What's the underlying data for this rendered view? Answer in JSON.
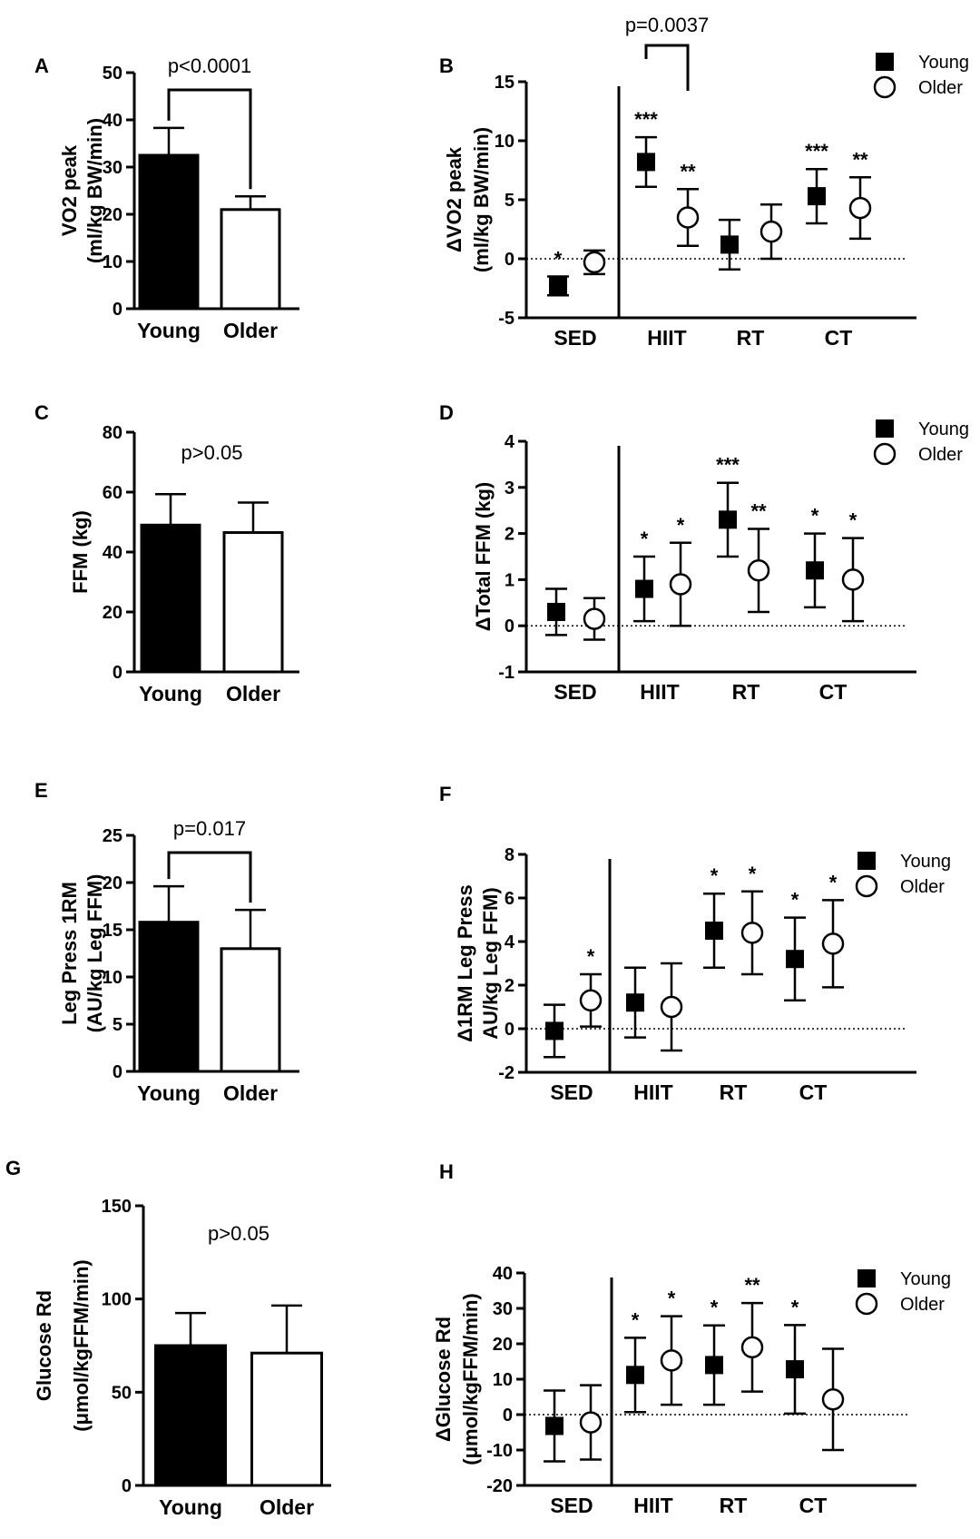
{
  "chart_data": [
    {
      "panel": "A",
      "type": "bar",
      "ylabel": [
        "VO2 peak",
        "(ml/kg BW/min)"
      ],
      "categories": [
        "Young",
        "Older"
      ],
      "values": [
        32.5,
        21.0
      ],
      "errors": [
        5.8,
        2.8
      ],
      "ylim": [
        0,
        50
      ],
      "yticks": [
        0,
        10,
        20,
        30,
        40,
        50
      ],
      "annotation": "p<0.0001",
      "bracket": true
    },
    {
      "panel": "B",
      "type": "scatter",
      "ylabel": [
        "ΔVO2 peak",
        "(ml/kg BW/min)"
      ],
      "categories": [
        "SED",
        "HIIT",
        "RT",
        "CT"
      ],
      "ylim": [
        -5,
        15
      ],
      "yticks": [
        -5,
        0,
        5,
        10,
        15
      ],
      "legend": [
        "Young",
        "Older"
      ],
      "series": [
        {
          "name": "Young",
          "values": [
            -2.3,
            8.2,
            1.2,
            5.3
          ],
          "errors": [
            0.8,
            2.1,
            2.1,
            2.3
          ],
          "stars": [
            "*",
            "***",
            "",
            "***"
          ]
        },
        {
          "name": "Older",
          "values": [
            -0.3,
            3.5,
            2.3,
            4.3
          ],
          "errors": [
            1.0,
            2.4,
            2.3,
            2.6
          ],
          "stars": [
            "",
            "**",
            "",
            "**"
          ]
        }
      ],
      "annotation": "p=0.0037"
    },
    {
      "panel": "C",
      "type": "bar",
      "ylabel": [
        "FFM (kg)"
      ],
      "categories": [
        "Young",
        "Older"
      ],
      "values": [
        49.0,
        46.5
      ],
      "errors": [
        10.3,
        10.0
      ],
      "ylim": [
        0,
        80
      ],
      "yticks": [
        0,
        20,
        40,
        60,
        80
      ],
      "annotation": "p>0.05",
      "bracket": false
    },
    {
      "panel": "D",
      "type": "scatter",
      "ylabel": [
        "ΔTotal FFM (kg)"
      ],
      "categories": [
        "SED",
        "HIIT",
        "RT",
        "CT"
      ],
      "ylim": [
        -1,
        4
      ],
      "yticks": [
        -1,
        0,
        1,
        2,
        3,
        4
      ],
      "legend": [
        "Young",
        "Older"
      ],
      "series": [
        {
          "name": "Young",
          "values": [
            0.3,
            0.8,
            2.3,
            1.2
          ],
          "errors": [
            0.5,
            0.7,
            0.8,
            0.8
          ],
          "stars": [
            "",
            "*",
            "***",
            "*"
          ]
        },
        {
          "name": "Older",
          "values": [
            0.15,
            0.9,
            1.2,
            1.0
          ],
          "errors": [
            0.45,
            0.9,
            0.9,
            0.9
          ],
          "stars": [
            "",
            "*",
            "**",
            "*"
          ]
        }
      ]
    },
    {
      "panel": "E",
      "type": "bar",
      "ylabel": [
        "Leg Press 1RM",
        "(AU/kg Leg FFM)"
      ],
      "categories": [
        "Young",
        "Older"
      ],
      "values": [
        15.8,
        13.0
      ],
      "errors": [
        3.8,
        4.1
      ],
      "ylim": [
        0,
        25
      ],
      "yticks": [
        0,
        5,
        10,
        15,
        20,
        25
      ],
      "annotation": "p=0.017",
      "bracket": true
    },
    {
      "panel": "F",
      "type": "scatter",
      "ylabel": [
        "Δ1RM Leg Press",
        "AU/kg Leg FFM)"
      ],
      "categories": [
        "SED",
        "HIIT",
        "RT",
        "CT"
      ],
      "ylim": [
        -2,
        8
      ],
      "yticks": [
        -2,
        0,
        2,
        4,
        6,
        8
      ],
      "legend": [
        "Young",
        "Older"
      ],
      "series": [
        {
          "name": "Young",
          "values": [
            -0.1,
            1.2,
            4.5,
            3.2
          ],
          "errors": [
            1.2,
            1.6,
            1.7,
            1.9
          ],
          "stars": [
            "",
            "",
            "*",
            "*"
          ]
        },
        {
          "name": "Older",
          "values": [
            1.3,
            1.0,
            4.4,
            3.9
          ],
          "errors": [
            1.2,
            2.0,
            1.9,
            2.0
          ],
          "stars": [
            "*",
            "",
            "*",
            "*"
          ]
        }
      ]
    },
    {
      "panel": "G",
      "type": "bar",
      "ylabel": [
        "Glucose Rd",
        "(μmol/kgFFM/min)"
      ],
      "categories": [
        "Young",
        "Older"
      ],
      "values": [
        75.0,
        71.0
      ],
      "errors": [
        17.5,
        25.5
      ],
      "ylim": [
        0,
        150
      ],
      "yticks": [
        0,
        50,
        100,
        150
      ],
      "annotation": "p>0.05",
      "bracket": false
    },
    {
      "panel": "H",
      "type": "scatter",
      "ylabel": [
        "ΔGlucose Rd",
        "(μmol/kgFFM/min)"
      ],
      "categories": [
        "SED",
        "HIIT",
        "RT",
        "CT"
      ],
      "ylim": [
        -20,
        40
      ],
      "yticks": [
        -20,
        -10,
        0,
        10,
        20,
        30,
        40
      ],
      "legend": [
        "Young",
        "Older"
      ],
      "series": [
        {
          "name": "Young",
          "values": [
            -3.2,
            11.2,
            14.0,
            12.8
          ],
          "errors": [
            10.0,
            10.5,
            11.2,
            12.5
          ],
          "stars": [
            "",
            "*",
            "*",
            "*"
          ]
        },
        {
          "name": "Older",
          "values": [
            -2.2,
            15.3,
            19.0,
            4.3
          ],
          "errors": [
            10.5,
            12.5,
            12.5,
            14.3
          ],
          "stars": [
            "",
            "*",
            "**",
            ""
          ]
        }
      ]
    }
  ]
}
